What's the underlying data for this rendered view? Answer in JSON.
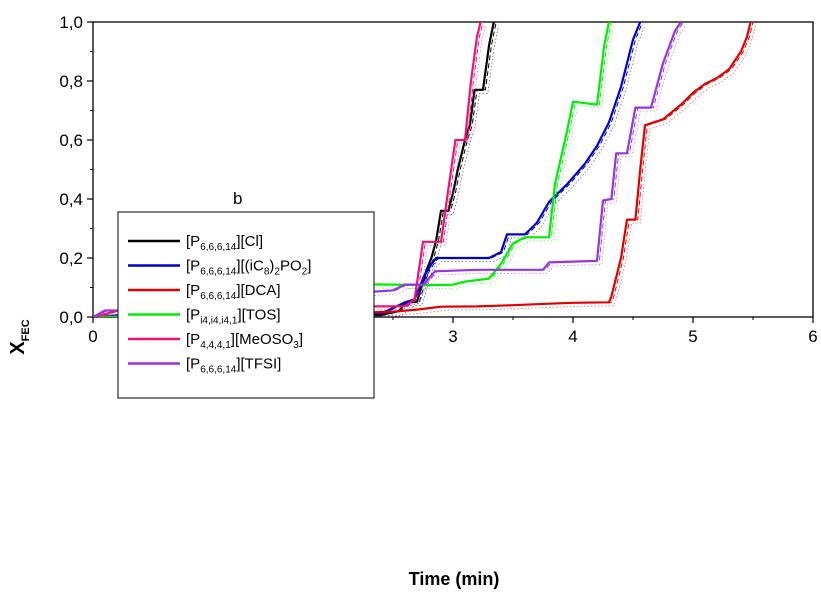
{
  "chart_data": {
    "type": "line",
    "title": "",
    "annotation": "b",
    "xlabel": "Time (min)",
    "ylabel": {
      "main": "X",
      "sub": "FEC"
    },
    "xlim": [
      0,
      6
    ],
    "ylim": [
      0,
      1
    ],
    "xticks": [
      0,
      1,
      2,
      3,
      4,
      5,
      6
    ],
    "xtick_labels": [
      "0",
      "1",
      "2",
      "3",
      "4",
      "5",
      "6"
    ],
    "yticks": [
      0,
      0.2,
      0.4,
      0.6,
      0.8,
      1.0
    ],
    "ytick_labels": [
      "0,0",
      "0,2",
      "0,4",
      "0,6",
      "0,8",
      "1,0"
    ],
    "grid": false,
    "legend_position": "left-middle",
    "series": [
      {
        "name": "[P6,6,6,14][Cl]",
        "label_parts": [
          [
            "[P",
            ""
          ],
          [
            "6,6,6,14",
            "sub"
          ],
          [
            "][Cl]",
            ""
          ]
        ],
        "color": "#000000",
        "points": [
          [
            0,
            0
          ],
          [
            0.2,
            0.003
          ],
          [
            0.5,
            0.004
          ],
          [
            1.5,
            0.005
          ],
          [
            2.4,
            0.006
          ],
          [
            2.45,
            0.012
          ],
          [
            2.55,
            0.02
          ],
          [
            2.6,
            0.045
          ],
          [
            2.65,
            0.05
          ],
          [
            2.7,
            0.052
          ],
          [
            2.78,
            0.16
          ],
          [
            2.82,
            0.2
          ],
          [
            2.86,
            0.26
          ],
          [
            2.9,
            0.36
          ],
          [
            2.96,
            0.36
          ],
          [
            3.0,
            0.42
          ],
          [
            3.04,
            0.5
          ],
          [
            3.1,
            0.6
          ],
          [
            3.14,
            0.65
          ],
          [
            3.18,
            0.77
          ],
          [
            3.25,
            0.77
          ],
          [
            3.3,
            0.92
          ],
          [
            3.34,
            1.0
          ]
        ]
      },
      {
        "name": "[P6,6,6,14][(iC8)2PO2]",
        "label_parts": [
          [
            "[P",
            ""
          ],
          [
            "6,6,6,14",
            "sub"
          ],
          [
            "][(iC",
            ""
          ],
          [
            "8",
            "sub"
          ],
          [
            ")",
            ""
          ],
          [
            "2",
            "sub"
          ],
          [
            "PO",
            ""
          ],
          [
            "2",
            "sub"
          ],
          [
            "]",
            ""
          ]
        ],
        "color": "#0000cc",
        "points": [
          [
            0,
            0
          ],
          [
            0.3,
            0.008
          ],
          [
            1.2,
            0.01
          ],
          [
            2.4,
            0.012
          ],
          [
            2.5,
            0.03
          ],
          [
            2.6,
            0.05
          ],
          [
            2.68,
            0.06
          ],
          [
            2.76,
            0.14
          ],
          [
            2.82,
            0.18
          ],
          [
            2.86,
            0.2
          ],
          [
            3.1,
            0.2
          ],
          [
            3.3,
            0.2
          ],
          [
            3.4,
            0.22
          ],
          [
            3.45,
            0.28
          ],
          [
            3.6,
            0.28
          ],
          [
            3.7,
            0.32
          ],
          [
            3.8,
            0.39
          ],
          [
            3.95,
            0.45
          ],
          [
            4.1,
            0.52
          ],
          [
            4.2,
            0.58
          ],
          [
            4.3,
            0.66
          ],
          [
            4.4,
            0.78
          ],
          [
            4.5,
            0.94
          ],
          [
            4.56,
            1.0
          ]
        ]
      },
      {
        "name": "[P6,6,6,14][DCA]",
        "label_parts": [
          [
            "[P",
            ""
          ],
          [
            "6,6,6,14",
            "sub"
          ],
          [
            "][DCA]",
            ""
          ]
        ],
        "color": "#e00000",
        "points": [
          [
            0,
            0
          ],
          [
            0.5,
            0.002
          ],
          [
            1.0,
            0.004
          ],
          [
            1.5,
            0.008
          ],
          [
            2.0,
            0.012
          ],
          [
            2.5,
            0.018
          ],
          [
            2.7,
            0.025
          ],
          [
            2.9,
            0.035
          ],
          [
            3.2,
            0.036
          ],
          [
            3.5,
            0.04
          ],
          [
            3.8,
            0.045
          ],
          [
            4.0,
            0.048
          ],
          [
            4.3,
            0.05
          ],
          [
            4.32,
            0.07
          ],
          [
            4.4,
            0.2
          ],
          [
            4.45,
            0.33
          ],
          [
            4.52,
            0.33
          ],
          [
            4.56,
            0.5
          ],
          [
            4.6,
            0.65
          ],
          [
            4.75,
            0.67
          ],
          [
            4.9,
            0.72
          ],
          [
            5.0,
            0.76
          ],
          [
            5.1,
            0.79
          ],
          [
            5.2,
            0.81
          ],
          [
            5.3,
            0.84
          ],
          [
            5.4,
            0.9
          ],
          [
            5.45,
            0.95
          ],
          [
            5.48,
            1.0
          ]
        ]
      },
      {
        "name": "[Pi4,i4,i4,1][TOS]",
        "label_parts": [
          [
            "[P",
            ""
          ],
          [
            "i4,i4,i4,1",
            "sub"
          ],
          [
            "][TOS]",
            ""
          ]
        ],
        "color": "#00ee00",
        "points": [
          [
            0,
            0
          ],
          [
            0.5,
            0.002
          ],
          [
            1.0,
            0.004
          ],
          [
            1.2,
            0.008
          ],
          [
            1.3,
            0.098
          ],
          [
            1.5,
            0.1
          ],
          [
            1.7,
            0.112
          ],
          [
            2.0,
            0.112
          ],
          [
            2.5,
            0.11
          ],
          [
            2.8,
            0.108
          ],
          [
            3.0,
            0.11
          ],
          [
            3.1,
            0.12
          ],
          [
            3.3,
            0.13
          ],
          [
            3.4,
            0.18
          ],
          [
            3.5,
            0.25
          ],
          [
            3.6,
            0.27
          ],
          [
            3.8,
            0.27
          ],
          [
            3.85,
            0.45
          ],
          [
            3.95,
            0.63
          ],
          [
            4.0,
            0.73
          ],
          [
            4.2,
            0.72
          ],
          [
            4.26,
            0.92
          ],
          [
            4.3,
            1.0
          ]
        ]
      },
      {
        "name": "[P4,4,4,1][MeOSO3]",
        "label_parts": [
          [
            "[P",
            ""
          ],
          [
            "4,4,4,1",
            "sub"
          ],
          [
            "][MeOSO",
            ""
          ],
          [
            "3",
            "sub"
          ],
          [
            "]",
            ""
          ]
        ],
        "color": "#ee1177",
        "points": [
          [
            0,
            0
          ],
          [
            0.1,
            0.01
          ],
          [
            0.3,
            0.032
          ],
          [
            0.8,
            0.032
          ],
          [
            1.0,
            0.033
          ],
          [
            1.3,
            0.034
          ],
          [
            1.5,
            0.038
          ],
          [
            2.0,
            0.037
          ],
          [
            2.5,
            0.036
          ],
          [
            2.6,
            0.037
          ],
          [
            2.68,
            0.06
          ],
          [
            2.75,
            0.255
          ],
          [
            2.9,
            0.255
          ],
          [
            2.96,
            0.43
          ],
          [
            3.02,
            0.6
          ],
          [
            3.1,
            0.6
          ],
          [
            3.15,
            0.8
          ],
          [
            3.2,
            0.95
          ],
          [
            3.23,
            1.0
          ]
        ]
      },
      {
        "name": "[P6,6,6,14][TFSI]",
        "label_parts": [
          [
            "[P",
            ""
          ],
          [
            "6,6,6,14",
            "sub"
          ],
          [
            "][TFSI]",
            ""
          ]
        ],
        "color": "#9933dd",
        "points": [
          [
            0,
            0
          ],
          [
            0.1,
            0.022
          ],
          [
            0.4,
            0.022
          ],
          [
            0.6,
            0.03
          ],
          [
            0.9,
            0.072
          ],
          [
            1.3,
            0.072
          ],
          [
            2.0,
            0.07
          ],
          [
            2.2,
            0.072
          ],
          [
            2.3,
            0.085
          ],
          [
            2.5,
            0.09
          ],
          [
            2.6,
            0.11
          ],
          [
            2.75,
            0.11
          ],
          [
            2.85,
            0.155
          ],
          [
            3.2,
            0.16
          ],
          [
            3.5,
            0.16
          ],
          [
            3.75,
            0.16
          ],
          [
            3.8,
            0.185
          ],
          [
            4.2,
            0.19
          ],
          [
            4.25,
            0.395
          ],
          [
            4.32,
            0.4
          ],
          [
            4.36,
            0.555
          ],
          [
            4.45,
            0.555
          ],
          [
            4.52,
            0.71
          ],
          [
            4.65,
            0.71
          ],
          [
            4.75,
            0.86
          ],
          [
            4.85,
            0.97
          ],
          [
            4.9,
            1.0
          ]
        ]
      }
    ]
  }
}
